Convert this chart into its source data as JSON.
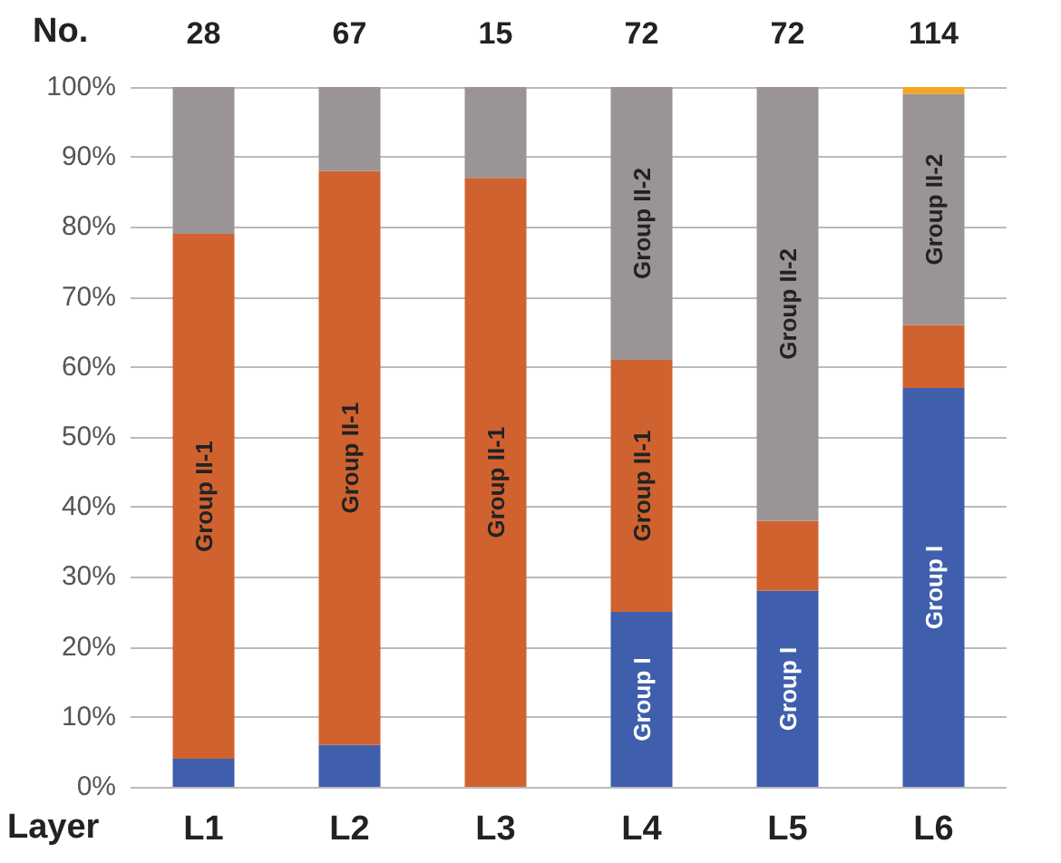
{
  "chart_data": {
    "type": "bar",
    "stacked": true,
    "xlabel": "Layer",
    "categories": [
      "L1",
      "L2",
      "L3",
      "L4",
      "L5",
      "L6"
    ],
    "series": [
      {
        "name": "Group I",
        "color": "#3f5fad",
        "values": [
          4,
          6,
          0,
          25,
          28,
          57
        ]
      },
      {
        "name": "Group II-1",
        "color": "#d0622f",
        "values": [
          75,
          82,
          87,
          36,
          10,
          9
        ]
      },
      {
        "name": "Group II-2",
        "color": "#9b9494",
        "values": [
          21,
          12,
          13,
          39,
          62,
          33
        ]
      },
      {
        "color": "#f2a623",
        "values": [
          0,
          0,
          0,
          0,
          0,
          1
        ]
      }
    ],
    "ylim": [
      0,
      100
    ],
    "yticks": [
      {
        "value": 0,
        "label": "0%"
      },
      {
        "value": 10,
        "label": "10%"
      },
      {
        "value": 20,
        "label": "20%"
      },
      {
        "value": 30,
        "label": "30%"
      },
      {
        "value": 40,
        "label": "40%"
      },
      {
        "value": 50,
        "label": "50%"
      },
      {
        "value": 60,
        "label": "60%"
      },
      {
        "value": 70,
        "label": "70%"
      },
      {
        "value": 80,
        "label": "80%"
      },
      {
        "value": 90,
        "label": "90%"
      },
      {
        "value": 100,
        "label": "100%"
      }
    ],
    "annotations": [
      "No.",
      "28",
      "67",
      "15",
      "72",
      "72",
      "114"
    ],
    "grid": "y",
    "legend": false
  }
}
